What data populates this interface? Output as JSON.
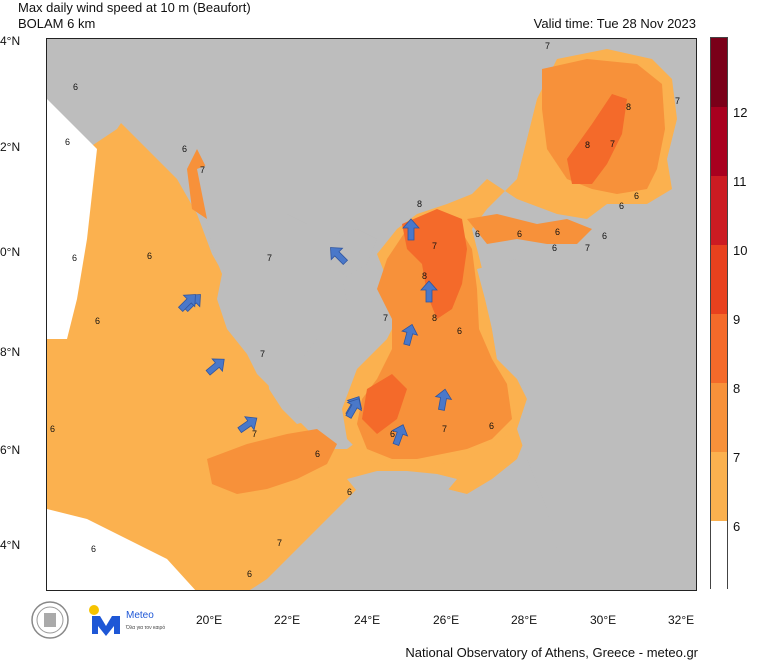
{
  "header": {
    "title": "Max daily wind speed at 10 m (Beaufort)",
    "model": "BOLAM 6 km",
    "valid_time": "Valid time: Tue 28 Nov 2023"
  },
  "lat_labels": [
    "4°N",
    "2°N",
    "0°N",
    "8°N",
    "6°N",
    "4°N"
  ],
  "lon_labels": [
    "20°E",
    "22°E",
    "24°E",
    "26°E",
    "28°E",
    "30°E",
    "32°E"
  ],
  "colorbar": {
    "levels": [
      "12",
      "11",
      "10",
      "9",
      "8",
      "7",
      "6"
    ],
    "colors": [
      "#7a0019",
      "#a8001f",
      "#cc1b22",
      "#e8411e",
      "#f46a2a",
      "#f7913a",
      "#fbb14f",
      "#ffffff"
    ]
  },
  "contour_labels": [
    "7",
    "6",
    "6",
    "6",
    "6",
    "6",
    "6",
    "7",
    "7",
    "8",
    "8",
    "7",
    "7",
    "8",
    "6",
    "6",
    "6",
    "6",
    "7",
    "8",
    "8",
    "6",
    "7",
    "7",
    "7",
    "6",
    "6",
    "6",
    "7",
    "6",
    "6",
    "7",
    "6",
    "6",
    "7",
    "6",
    "6",
    "6"
  ],
  "wind_arrows": 12,
  "footer": "National Observatory of Athens, Greece - meteo.gr",
  "logos": {
    "meteo": "Meteo",
    "meteo_sub": "Όλα για τον καιρό"
  }
}
